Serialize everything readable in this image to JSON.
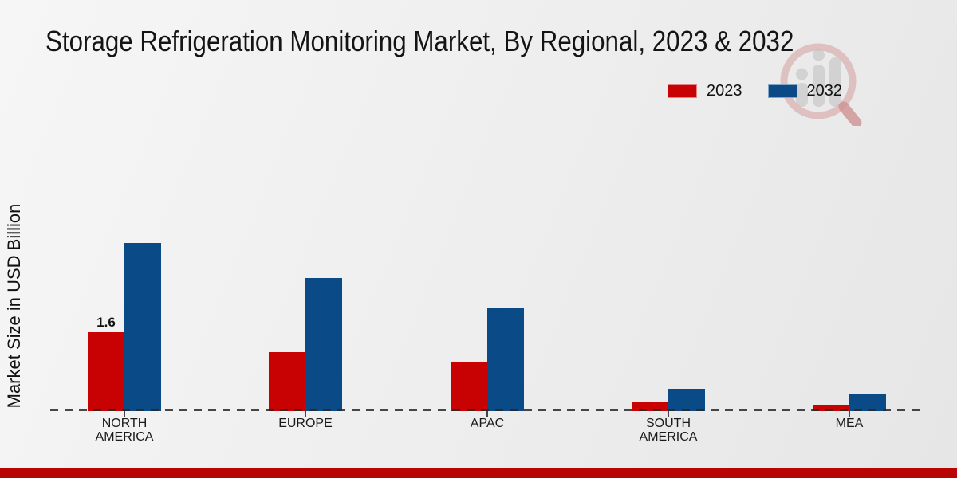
{
  "header": {
    "title": "Storage Refrigeration Monitoring Market, By Regional, 2023 & 2032"
  },
  "legend": [
    {
      "label": "2023",
      "color": "#c80202"
    },
    {
      "label": "2032",
      "color": "#0a4a87"
    }
  ],
  "y_axis": {
    "label": "Market Size in USD Billion"
  },
  "watermark": {
    "name": "magnifier-bar-chart-logo"
  },
  "colors": {
    "series_2023": "#c80202",
    "series_2032": "#0a4a87",
    "bottom_bar": "#b80404",
    "baseline": "#282828",
    "text": "#141414"
  },
  "chart_data": {
    "type": "bar",
    "title": "Storage Refrigeration Monitoring Market, By Regional, 2023 & 2032",
    "ylabel": "Market Size in USD Billion",
    "categories": [
      "NORTH AMERICA",
      "EUROPE",
      "APAC",
      "SOUTH AMERICA",
      "MEA"
    ],
    "series": [
      {
        "name": "2023",
        "color": "#c80202",
        "values": [
          1.6,
          1.2,
          1.0,
          0.2,
          0.13
        ]
      },
      {
        "name": "2032",
        "color": "#0a4a87",
        "values": [
          3.4,
          2.7,
          2.1,
          0.45,
          0.35
        ]
      }
    ],
    "data_labels": [
      {
        "series": "2023",
        "category": "NORTH AMERICA",
        "text": "1.6"
      }
    ],
    "axis": {
      "baseline_style": "dashed",
      "y_axis_line": "none",
      "gridlines": "off"
    },
    "legend_position": "top-right"
  }
}
